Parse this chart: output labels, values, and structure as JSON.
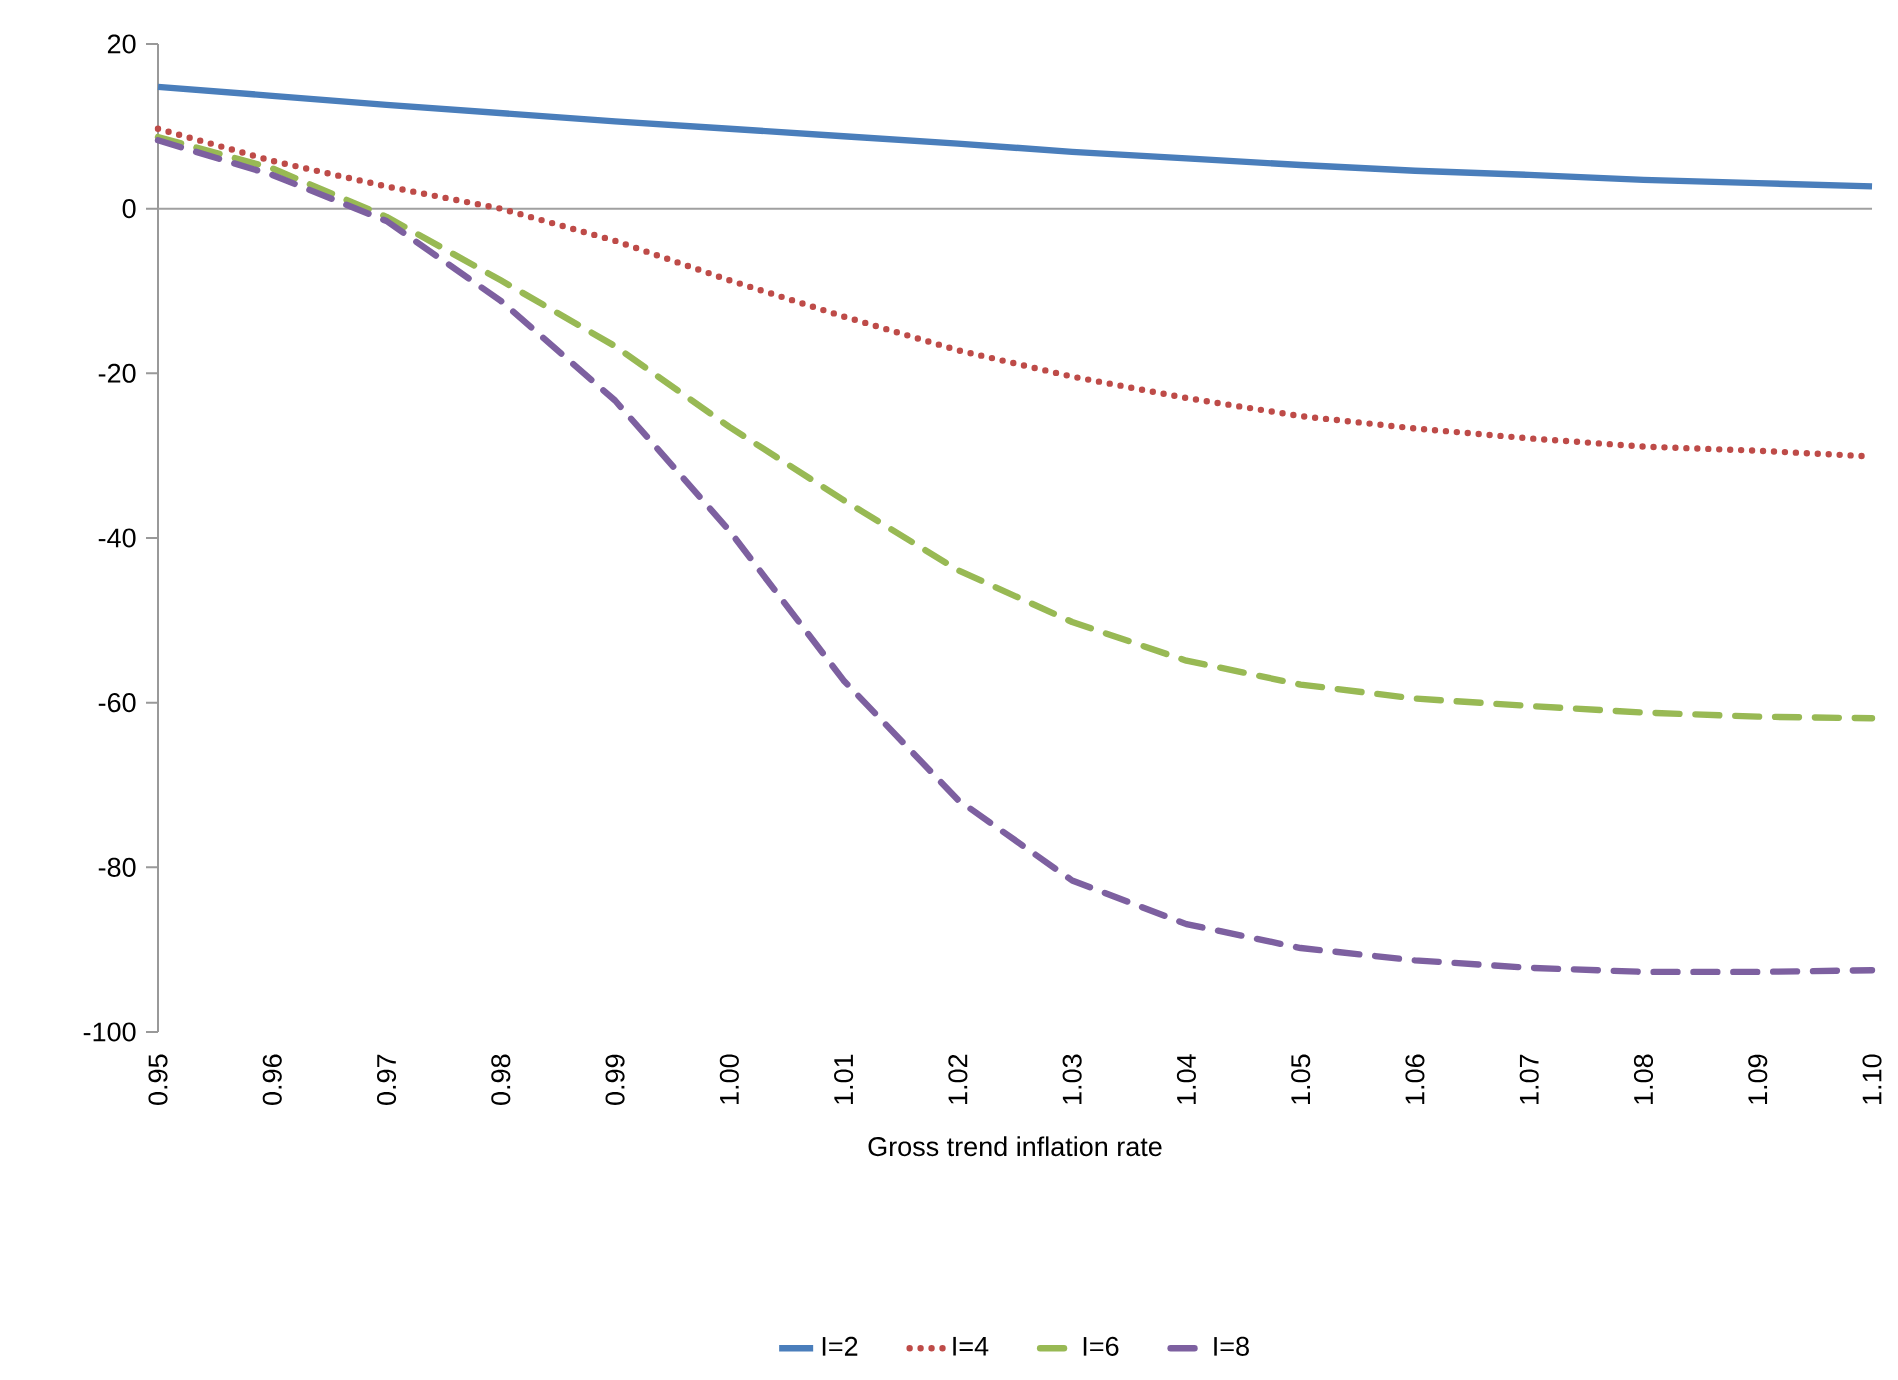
{
  "chart_data": {
    "type": "line",
    "xlabel": "Gross trend inflation rate",
    "x": [
      0.95,
      0.96,
      0.97,
      0.98,
      0.99,
      1.0,
      1.01,
      1.02,
      1.03,
      1.04,
      1.05,
      1.06,
      1.07,
      1.08,
      1.09,
      1.1
    ],
    "series": [
      {
        "name": "I=2",
        "color": "#4a7ebb",
        "line_style": "solid",
        "values": [
          14.8,
          13.7,
          12.6,
          11.6,
          10.6,
          9.7,
          8.8,
          7.9,
          6.9,
          6.1,
          5.3,
          4.6,
          4.1,
          3.5,
          3.1,
          2.7
        ]
      },
      {
        "name": "I=4",
        "color": "#be4b48",
        "line_style": "dotted",
        "values": [
          9.7,
          5.8,
          2.7,
          0,
          -3.9,
          -8.7,
          -13.1,
          -17.2,
          -20.4,
          -23,
          -25.2,
          -26.7,
          -27.9,
          -28.9,
          -29.4,
          -30.1
        ]
      },
      {
        "name": "I=6",
        "color": "#98b954",
        "line_style": "dashed",
        "values": [
          8.7,
          4.9,
          -1,
          -8.7,
          -16.7,
          -26.5,
          -35.4,
          -43.9,
          -50.2,
          -54.9,
          -57.8,
          -59.5,
          -60.4,
          -61.2,
          -61.7,
          -61.9
        ]
      },
      {
        "name": "I=8",
        "color": "#7d60a0",
        "line_style": "dashed",
        "values": [
          8.3,
          4.1,
          -1.5,
          -11.2,
          -23.3,
          -39.1,
          -57.3,
          -71.8,
          -81.6,
          -86.9,
          -89.8,
          -91.3,
          -92.2,
          -92.7,
          -92.7,
          -92.5
        ]
      }
    ],
    "xlim": [
      0.95,
      1.1
    ],
    "xticks": [
      {
        "value": 0.95,
        "label": "0.95"
      },
      {
        "value": 0.96,
        "label": "0.96"
      },
      {
        "value": 0.97,
        "label": "0.97"
      },
      {
        "value": 0.98,
        "label": "0.98"
      },
      {
        "value": 0.99,
        "label": "0.99"
      },
      {
        "value": 1.0,
        "label": "1.00"
      },
      {
        "value": 1.01,
        "label": "1.01"
      },
      {
        "value": 1.02,
        "label": "1.02"
      },
      {
        "value": 1.03,
        "label": "1.03"
      },
      {
        "value": 1.04,
        "label": "1.04"
      },
      {
        "value": 1.05,
        "label": "1.05"
      },
      {
        "value": 1.06,
        "label": "1.06"
      },
      {
        "value": 1.07,
        "label": "1.07"
      },
      {
        "value": 1.08,
        "label": "1.08"
      },
      {
        "value": 1.09,
        "label": "1.09"
      },
      {
        "value": 1.1,
        "label": "1.10"
      }
    ],
    "ylim": [
      -100,
      20
    ],
    "yticks": [
      -100,
      -80,
      -60,
      -40,
      -20,
      0,
      20
    ],
    "ref_lines": [
      {
        "axis": "y",
        "value": 0,
        "color": "#a0a0a0"
      }
    ],
    "grid": false,
    "legend": "bottom",
    "marker": "none"
  }
}
